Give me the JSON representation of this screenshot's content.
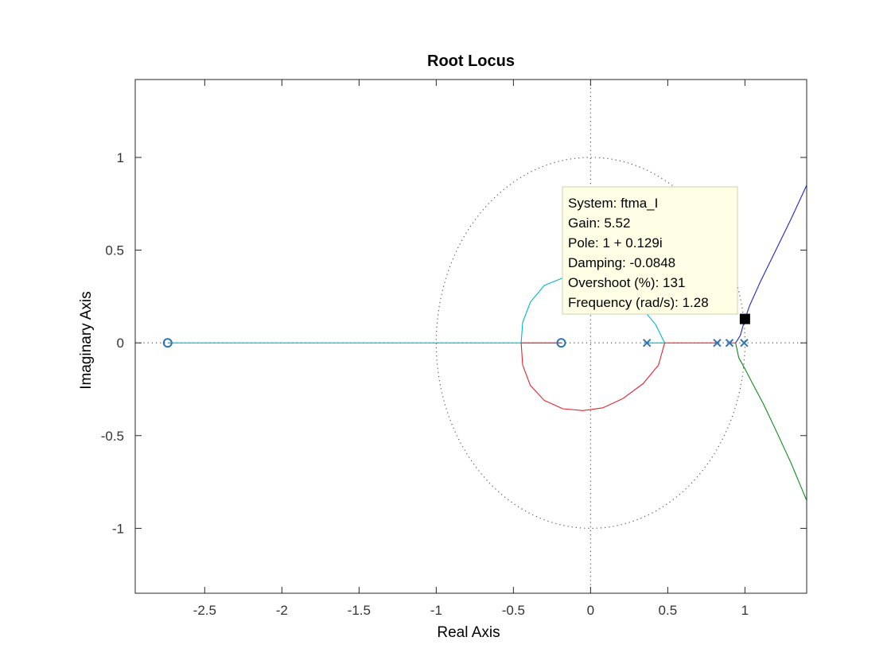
{
  "chart_data": {
    "type": "line",
    "title": "Root Locus",
    "xlabel": "Real Axis",
    "ylabel": "Imaginary Axis",
    "xlim": [
      -2.95,
      1.4
    ],
    "ylim": [
      -1.35,
      1.42
    ],
    "xticks": [
      -2.5,
      -2,
      -1.5,
      -1,
      -0.5,
      0,
      0.5,
      1
    ],
    "xtick_labels": [
      "-2.5",
      "-2",
      "-1.5",
      "-1",
      "-0.5",
      "0",
      "0.5",
      "1"
    ],
    "yticks": [
      -1,
      -0.5,
      0,
      0.5,
      1
    ],
    "ytick_labels": [
      "-1",
      "-0.5",
      "0",
      "0.5",
      "1"
    ],
    "grid": false,
    "unit_circle": {
      "style": "dotted",
      "color": "#555555"
    },
    "zero_axes": {
      "style": "dotted",
      "color": "#555555"
    },
    "marker_color": "#2f74b5",
    "poles": [
      [
        0.365,
        0
      ],
      [
        0.82,
        0
      ],
      [
        0.9,
        0
      ],
      [
        0.995,
        0
      ]
    ],
    "zeros": [
      [
        -2.74,
        0
      ],
      [
        -0.19,
        0
      ]
    ],
    "series": [
      {
        "color": "#00b8c4",
        "points": [
          [
            -2.74,
            0
          ],
          [
            -0.45,
            0
          ]
        ]
      },
      {
        "color": "#00b8c4",
        "points": [
          [
            -0.45,
            0
          ],
          [
            -0.44,
            0.11
          ],
          [
            -0.39,
            0.22
          ],
          [
            -0.3,
            0.31
          ],
          [
            -0.18,
            0.35
          ],
          [
            -0.05,
            0.36
          ],
          [
            0.08,
            0.35
          ],
          [
            0.21,
            0.3
          ],
          [
            0.32,
            0.2
          ],
          [
            0.42,
            0.1
          ],
          [
            0.48,
            0
          ]
        ]
      },
      {
        "color": "#00b8c4",
        "points": [
          [
            -0.45,
            0
          ],
          [
            -0.19,
            0
          ]
        ]
      },
      {
        "color": "#e8242b",
        "points": [
          [
            -0.19,
            0
          ],
          [
            -0.45,
            0
          ]
        ]
      },
      {
        "color": "#e8242b",
        "points": [
          [
            -0.45,
            0
          ],
          [
            -0.44,
            -0.12
          ],
          [
            -0.39,
            -0.23
          ],
          [
            -0.3,
            -0.31
          ],
          [
            -0.18,
            -0.355
          ],
          [
            -0.05,
            -0.365
          ],
          [
            0.08,
            -0.35
          ],
          [
            0.21,
            -0.3
          ],
          [
            0.34,
            -0.22
          ],
          [
            0.44,
            -0.12
          ],
          [
            0.48,
            0
          ]
        ]
      },
      {
        "color": "#00b8c4",
        "points": [
          [
            0.365,
            0
          ],
          [
            0.48,
            0
          ]
        ]
      },
      {
        "color": "#e8242b",
        "points": [
          [
            0.48,
            0
          ],
          [
            0.82,
            0
          ]
        ]
      },
      {
        "color": "#e8242b",
        "points": [
          [
            0.9,
            0
          ],
          [
            0.94,
            0
          ]
        ]
      },
      {
        "color": "#1f24d6",
        "points": [
          [
            0.94,
            0
          ],
          [
            0.97,
            0.04
          ],
          [
            1.0,
            0.129
          ],
          [
            1.03,
            0.2
          ],
          [
            1.1,
            0.33
          ],
          [
            1.2,
            0.5
          ],
          [
            1.3,
            0.67
          ],
          [
            1.4,
            0.85
          ]
        ]
      },
      {
        "color": "#0d8a1a",
        "points": [
          [
            0.94,
            0
          ],
          [
            0.96,
            -0.08
          ],
          [
            1.0,
            -0.14
          ],
          [
            1.05,
            -0.22
          ],
          [
            1.12,
            -0.33
          ],
          [
            1.2,
            -0.47
          ],
          [
            1.3,
            -0.65
          ],
          [
            1.4,
            -0.85
          ]
        ]
      }
    ],
    "selected_point": [
      1.0,
      0.129
    ],
    "tooltip": {
      "lines": [
        "System: ftma_I",
        "Gain: 5.52",
        "Pole: 1 + 0.129i",
        "Damping: -0.0848",
        "Overshoot (%): 131",
        "Frequency (rad/s): 1.28"
      ]
    }
  }
}
